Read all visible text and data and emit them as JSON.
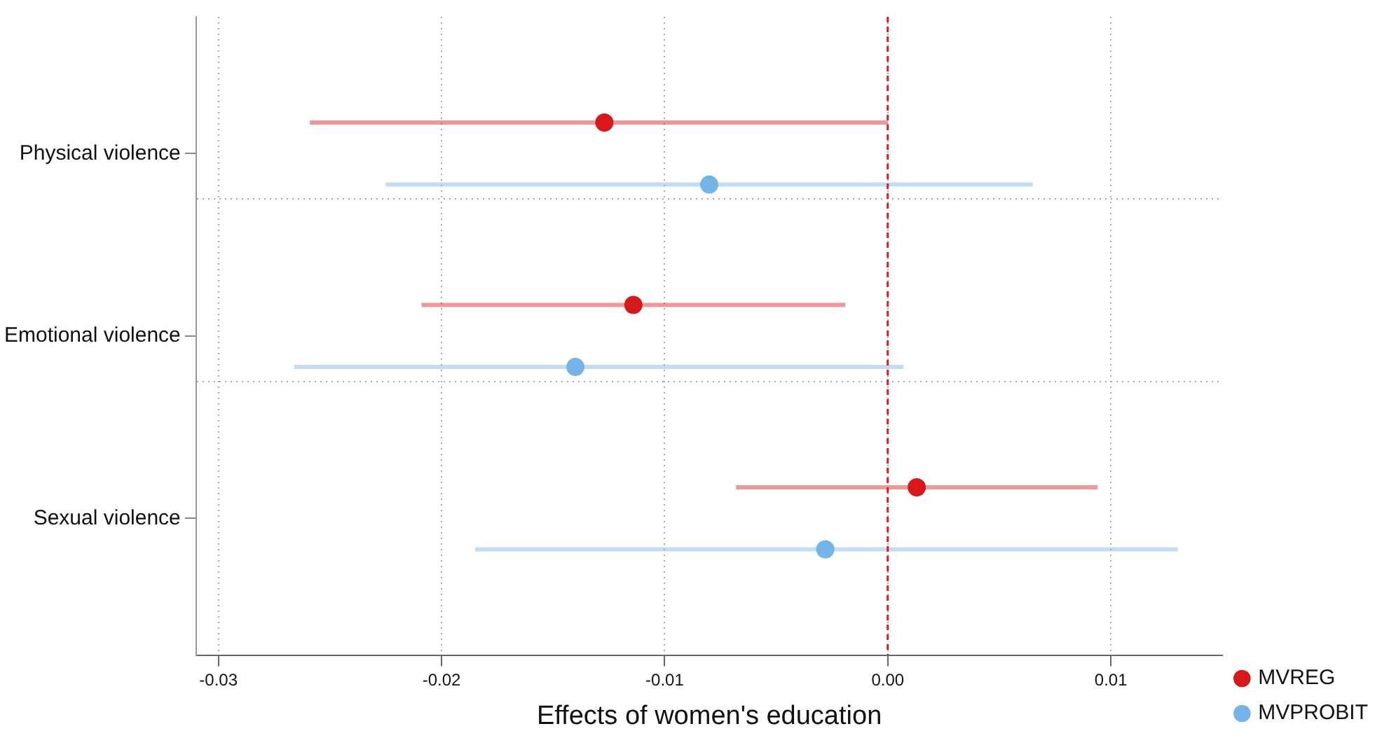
{
  "chart_data": {
    "type": "scatter",
    "orientation": "horizontal",
    "xlabel": "Effects of women's education",
    "categories": [
      "Physical violence",
      "Emotional violence",
      "Sexual violence"
    ],
    "series": [
      {
        "name": "MVREG",
        "color": "#d7191c",
        "values": [
          -0.0127,
          -0.0114,
          0.0013
        ],
        "errors": [
          [
            -0.0259,
            0.0
          ],
          [
            -0.0209,
            -0.0019
          ],
          [
            -0.0068,
            0.0094
          ]
        ]
      },
      {
        "name": "MVPROBIT",
        "color": "#74b4e8",
        "values": [
          -0.008,
          -0.014,
          -0.0028
        ],
        "errors": [
          [
            -0.0225,
            0.0065
          ],
          [
            -0.0266,
            0.0007
          ],
          [
            -0.0185,
            0.013
          ]
        ]
      }
    ],
    "xlim": [
      -0.031,
      0.015
    ],
    "xticks": [
      -0.03,
      -0.02,
      -0.01,
      {
        "value": 0,
        "label": "0.00"
      },
      0.01
    ],
    "ref_lines": [
      {
        "axis": "x",
        "value": 0,
        "color": "#e31a1c",
        "line_style": "dashed"
      }
    ],
    "grid": true,
    "legend": "bottom right",
    "marker": "circle"
  }
}
